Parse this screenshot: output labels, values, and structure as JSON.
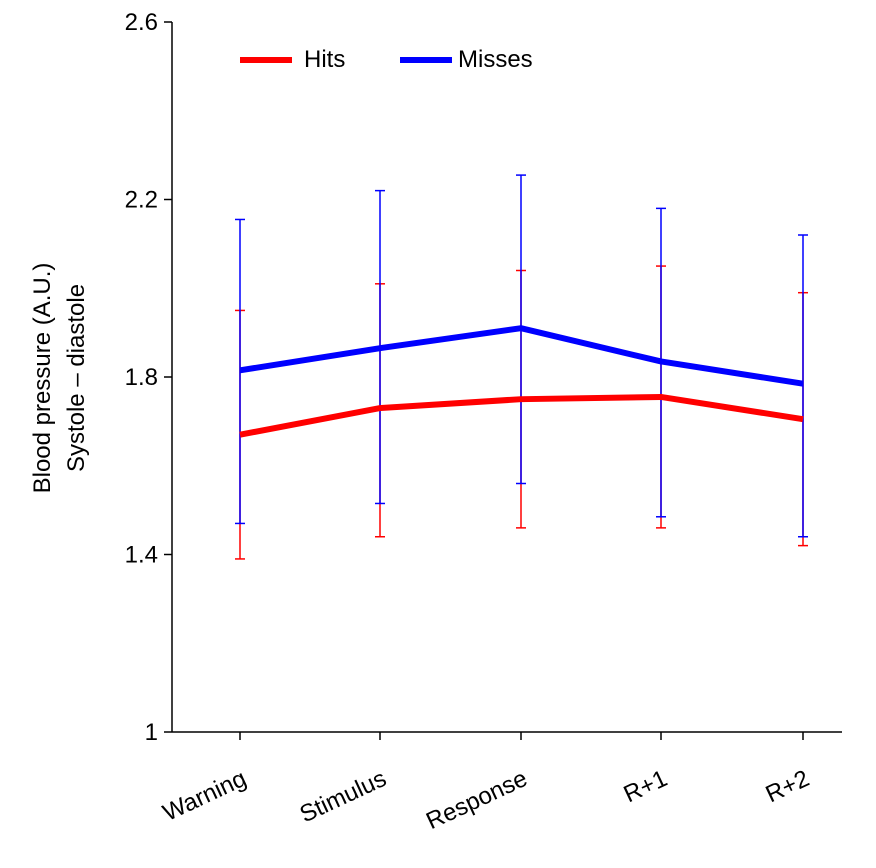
{
  "chart_data": {
    "type": "line",
    "categories": [
      "Warning",
      "Stimulus",
      "Response",
      "R+1",
      "R+2"
    ],
    "ylabel": [
      "Blood pressure (A.U.)",
      "Systole – diastole"
    ],
    "xlabel": "",
    "ylim": [
      1,
      2.6
    ],
    "yticks": [
      "1",
      "1.4",
      "1.8",
      "2.2",
      "2.6"
    ],
    "ytick_values": [
      1,
      1.4,
      1.8,
      2.2,
      2.6
    ],
    "grid": false,
    "legend_position": "top-left",
    "series": [
      {
        "name": "Hits",
        "color": "#ff0000",
        "values": [
          1.67,
          1.73,
          1.75,
          1.755,
          1.705
        ],
        "err_low": [
          1.39,
          1.44,
          1.46,
          1.46,
          1.42
        ],
        "err_high": [
          1.95,
          2.01,
          2.04,
          2.05,
          1.99
        ]
      },
      {
        "name": "Misses",
        "color": "#0000ff",
        "values": [
          1.815,
          1.865,
          1.91,
          1.835,
          1.785
        ],
        "err_low": [
          1.47,
          1.515,
          1.56,
          1.485,
          1.44
        ],
        "err_high": [
          2.155,
          2.22,
          2.255,
          2.18,
          2.12
        ]
      }
    ]
  }
}
